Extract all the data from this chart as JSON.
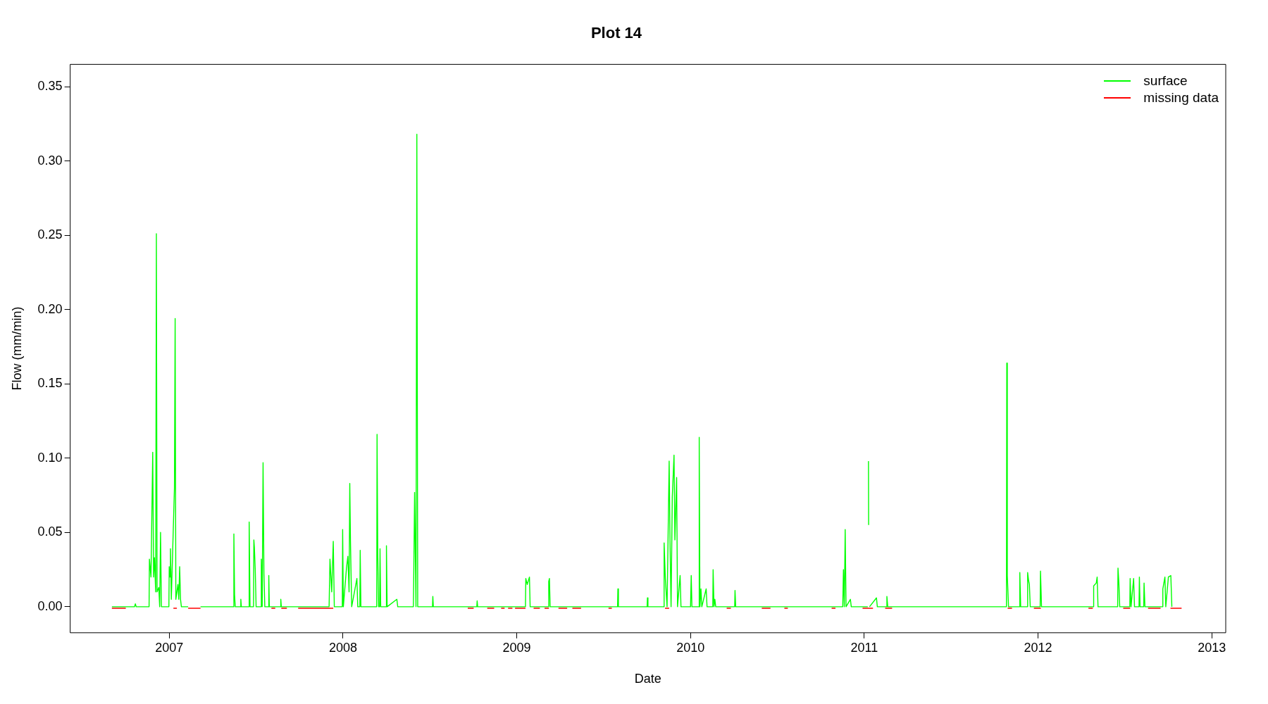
{
  "chart_data": {
    "type": "line",
    "title": "Plot 14",
    "xlabel": "Date",
    "ylabel": "Flow (mm/min)",
    "xlim": [
      2006.43,
      2013.08
    ],
    "xticks": [
      2007,
      2008,
      2009,
      2010,
      2011,
      2012,
      2013
    ],
    "ylim": [
      -0.0175,
      0.365
    ],
    "yticks": [
      {
        "value": 0,
        "label": "0.00"
      },
      {
        "value": 0.05,
        "label": "0.05"
      },
      {
        "value": 0.1,
        "label": "0.10"
      },
      {
        "value": 0.15,
        "label": "0.15"
      },
      {
        "value": 0.2,
        "label": "0.20"
      },
      {
        "value": 0.25,
        "label": "0.25"
      },
      {
        "value": 0.3,
        "label": "0.30"
      },
      {
        "value": 0.35,
        "label": "0.35"
      }
    ],
    "grid": false,
    "legend": "top right",
    "marker": "none",
    "line_style": "solid",
    "series": [
      {
        "name": "surface",
        "color": "#00ff00",
        "x": [
          2006.67,
          2006.8,
          2006.805,
          2006.81,
          2006.884,
          2006.886,
          2006.895,
          2006.905,
          2006.91,
          2006.915,
          2006.922,
          2006.926,
          2006.93,
          2006.94,
          2006.945,
          2006.95,
          2006.955,
          2006.998,
          2007.0,
          2007.004,
          2007.007,
          2007.012,
          2007.03,
          2007.034,
          2007.038,
          2007.05,
          2007.055,
          2007.06,
          2007.065,
          2007.07,
          2007.109,
          2007.11,
          2007.18,
          2007.37,
          2007.372,
          2007.376,
          2007.38,
          2007.41,
          2007.412,
          2007.415,
          2007.458,
          2007.46,
          2007.465,
          2007.485,
          2007.487,
          2007.49,
          2007.495,
          2007.5,
          2007.528,
          2007.53,
          2007.535,
          2007.54,
          2007.545,
          2007.55,
          2007.571,
          2007.573,
          2007.576,
          2007.64,
          2007.642,
          2007.645,
          2007.92,
          2007.925,
          2007.935,
          2007.944,
          2007.95,
          2007.996,
          2007.998,
          2008.002,
          2008.02,
          2008.028,
          2008.035,
          2008.039,
          2008.043,
          2008.05,
          2008.08,
          2008.085,
          2008.097,
          2008.099,
          2008.103,
          2008.194,
          2008.196,
          2008.2,
          2008.205,
          2008.211,
          2008.213,
          2008.217,
          2008.248,
          2008.25,
          2008.254,
          2008.31,
          2008.315,
          2008.405,
          2008.409,
          2008.412,
          2008.42,
          2008.425,
          2008.43,
          2008.515,
          2008.517,
          2008.52,
          2008.77,
          2008.772,
          2008.775,
          2009.05,
          2009.052,
          2009.06,
          2009.073,
          2009.077,
          2009.182,
          2009.184,
          2009.188,
          2009.192,
          2009.58,
          2009.582,
          2009.585,
          2009.75,
          2009.752,
          2009.755,
          2009.846,
          2009.848,
          2009.855,
          2009.865,
          2009.877,
          2009.882,
          2009.888,
          2009.895,
          2009.905,
          2009.91,
          2009.92,
          2009.925,
          2009.94,
          2009.945,
          2010.0,
          2010.004,
          2010.008,
          2010.048,
          2010.05,
          2010.054,
          2010.06,
          2010.065,
          2010.09,
          2010.095,
          2010.128,
          2010.13,
          2010.135,
          2010.14,
          2010.145,
          2010.254,
          2010.256,
          2010.26,
          2010.876,
          2010.88,
          2010.885,
          2010.89,
          2010.895,
          2010.92,
          2010.925,
          2011.02,
          2011.022,
          2011.024,
          2011.025,
          2011.027,
          2011.03,
          2011.07,
          2011.075,
          2011.128,
          2011.13,
          2011.135,
          2011.818,
          2011.82,
          2011.823,
          2011.83,
          2011.893,
          2011.895,
          2011.9,
          2011.938,
          2011.94,
          2011.945,
          2011.95,
          2011.955,
          2012.012,
          2012.014,
          2012.02,
          2012.318,
          2012.32,
          2012.335,
          2012.34,
          2012.345,
          2012.458,
          2012.46,
          2012.465,
          2012.47,
          2012.528,
          2012.53,
          2012.535,
          2012.55,
          2012.555,
          2012.581,
          2012.583,
          2012.587,
          2012.608,
          2012.61,
          2012.615,
          2012.716,
          2012.718,
          2012.73,
          2012.735,
          2012.75,
          2012.764,
          2012.77
        ],
        "values": [
          0,
          0,
          0.002,
          0,
          0,
          0.032,
          0.02,
          0.104,
          0.02,
          0.033,
          0.01,
          0.251,
          0.01,
          0.013,
          0,
          0.05,
          0,
          0,
          0.027,
          0.02,
          0.039,
          0.005,
          0.08,
          0.194,
          0.005,
          0.015,
          0.005,
          0.027,
          0.005,
          0,
          0,
          null,
          0,
          0,
          0.049,
          0.008,
          0,
          0,
          0.005,
          0,
          0,
          0.057,
          0,
          0,
          0.045,
          0.04,
          0.025,
          0,
          0,
          0.032,
          0,
          0.097,
          0.022,
          0,
          0,
          0.021,
          0,
          0,
          0.005,
          0,
          0,
          0.032,
          0.01,
          0.044,
          0,
          0,
          0.052,
          0,
          0.026,
          0.034,
          0.01,
          0.083,
          0.044,
          0,
          0.019,
          0,
          0,
          0.038,
          0,
          0,
          0.116,
          0.036,
          0,
          0,
          0.039,
          0,
          0,
          0.041,
          0,
          0.005,
          0,
          0,
          0.04,
          0.077,
          0,
          0.318,
          0,
          0,
          0.007,
          0,
          0,
          0.004,
          0,
          0,
          0.019,
          0.015,
          0.02,
          0,
          0,
          0.017,
          0.019,
          0,
          0,
          0.012,
          0,
          0,
          0.006,
          0,
          0,
          0.043,
          0.019,
          0,
          0.098,
          0.043,
          0,
          0.074,
          0.102,
          0.045,
          0.087,
          0,
          0.021,
          0,
          0,
          0.021,
          0,
          0,
          0.114,
          0,
          0.012,
          0,
          0.012,
          0,
          0,
          0.025,
          0,
          0.005,
          0,
          0,
          0.011,
          0,
          0,
          0.025,
          0,
          0.052,
          0,
          0.005,
          0,
          0,
          null,
          0.098,
          0.055,
          null,
          0,
          0.006,
          0,
          0,
          0.007,
          0,
          0,
          0.164,
          0.021,
          0,
          0,
          0.023,
          0,
          0,
          0.023,
          0.018,
          0.015,
          0,
          0,
          0.024,
          0,
          0,
          0.014,
          0.016,
          0.02,
          0,
          0,
          0.026,
          0.016,
          0,
          0,
          0.019,
          0,
          0.019,
          0,
          0,
          0.02,
          0,
          0,
          0.016,
          0,
          0,
          0.012,
          0.02,
          0,
          0.02,
          0.021,
          0
        ]
      },
      {
        "name": "missing data",
        "color": "#ff0000",
        "x": [
          2006.67,
          2006.75,
          2006.751,
          2007.024,
          2007.044,
          2007.045,
          2007.109,
          2007.18,
          2007.181,
          2007.588,
          2007.61,
          2007.611,
          2007.645,
          2007.677,
          2007.678,
          2007.742,
          2007.944,
          2007.945,
          2008.718,
          2008.752,
          2008.753,
          2008.83,
          2008.87,
          2008.871,
          2008.91,
          2008.93,
          2008.931,
          2008.95,
          2008.975,
          2008.976,
          2008.99,
          2009.05,
          2009.051,
          2009.097,
          2009.133,
          2009.134,
          2009.16,
          2009.185,
          2009.186,
          2009.24,
          2009.29,
          2009.291,
          2009.32,
          2009.37,
          2009.371,
          2009.528,
          2009.547,
          2009.548,
          2009.853,
          2009.877,
          2009.878,
          2010.208,
          2010.232,
          2010.233,
          2010.41,
          2010.46,
          2010.461,
          2010.54,
          2010.56,
          2010.561,
          2010.812,
          2010.834,
          2010.835,
          2010.99,
          2011.05,
          2011.051,
          2011.12,
          2011.16,
          2011.161,
          2011.825,
          2011.85,
          2011.851,
          2011.976,
          2012.016,
          2012.017,
          2012.29,
          2012.315,
          2012.316,
          2012.49,
          2012.53,
          2012.531,
          2012.633,
          2012.705,
          2012.706,
          2012.762,
          2012.826
        ],
        "values": [
          -0.001,
          -0.001,
          null,
          -0.001,
          -0.001,
          null,
          -0.001,
          -0.001,
          null,
          -0.001,
          -0.001,
          null,
          -0.001,
          -0.001,
          null,
          -0.001,
          -0.001,
          null,
          -0.001,
          -0.001,
          null,
          -0.001,
          -0.001,
          null,
          -0.001,
          -0.001,
          null,
          -0.001,
          -0.001,
          null,
          -0.001,
          -0.001,
          null,
          -0.001,
          -0.001,
          null,
          -0.001,
          -0.001,
          null,
          -0.001,
          -0.001,
          null,
          -0.001,
          -0.001,
          null,
          -0.001,
          -0.001,
          null,
          -0.001,
          -0.001,
          null,
          -0.001,
          -0.001,
          null,
          -0.001,
          -0.001,
          null,
          -0.001,
          -0.001,
          null,
          -0.001,
          -0.001,
          null,
          -0.001,
          -0.001,
          null,
          -0.001,
          -0.001,
          null,
          -0.001,
          -0.001,
          null,
          -0.001,
          -0.001,
          null,
          -0.001,
          -0.001,
          null,
          -0.001,
          -0.001,
          null,
          -0.001,
          -0.001,
          null,
          -0.001,
          -0.001
        ]
      }
    ]
  }
}
